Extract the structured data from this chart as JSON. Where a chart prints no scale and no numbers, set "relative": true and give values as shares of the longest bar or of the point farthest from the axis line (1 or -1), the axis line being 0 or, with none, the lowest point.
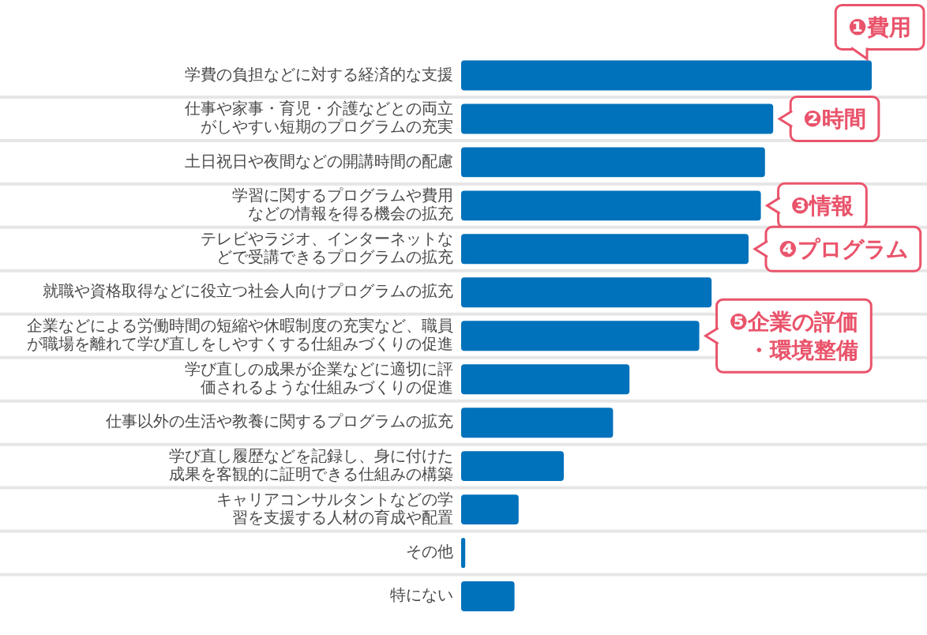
{
  "chart_data": {
    "type": "bar",
    "orientation": "horizontal",
    "relative": true,
    "grid": "y",
    "categories": [
      "学費の負担などに対する経済的な支援",
      "仕事や家事・育児・介護などとの両立がしやすい短期のプログラムの充実",
      "土日祝日や夜間などの開講時間の配慮",
      "学習に関するプログラムや費用などの情報を得る機会の拡充",
      "テレビやラジオ、インターネットなどで受講できるプログラムの拡充",
      "就職や資格取得などに役立つ社会人向けプログラムの拡充",
      "企業などによる労働時間の短縮や休暇制度の充実など、職員が職場を離れて学び直しをしやすくする仕組みづくりの促進",
      "学び直しの成果が企業などに適切に評価されるような仕組みづくりの促進",
      "仕事以外の生活や教養に関するプログラムの拡充",
      "学び直し履歴などを記録し、身に付けた成果を客観的に証明できる仕組みの構築",
      "キャリアコンサルタントなどの学習を支援する人材の育成や配置",
      "その他",
      "特にない"
    ],
    "values": [
      1,
      0.76,
      0.74,
      0.73,
      0.7,
      0.61,
      0.58,
      0.41,
      0.37,
      0.25,
      0.14,
      0.01,
      0.13
    ],
    "color": "#0071bb",
    "annotations": [
      {
        "text": "❶費用",
        "x": 1,
        "y": "学費の負担などに対する経済的な支援"
      },
      {
        "text": "❷時間",
        "x": 0.76,
        "y": "仕事や家事・育児・介護などとの両立がしやすい短期のプログラムの充実"
      },
      {
        "text": "❸情報",
        "x": 0.73,
        "y": "学習に関するプログラムや費用などの情報を得る機会の拡充"
      },
      {
        "text": "❹プログラム",
        "x": 0.7,
        "y": "テレビやラジオ、インターネットなどで受講できるプログラムの拡充"
      },
      {
        "text": "❺企業の評価・環境整備",
        "x": 0.58,
        "y": "企業などによる労働時間の短縮や休暇制度の充実など、職員が職場を離れて学び直しをしやすくする仕組みづくりの促進"
      }
    ]
  }
}
